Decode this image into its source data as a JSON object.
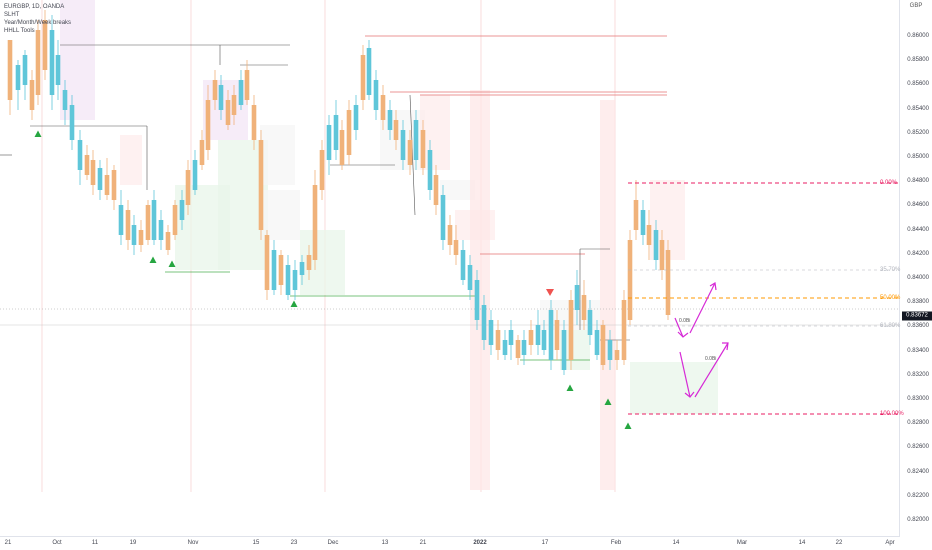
{
  "legend": {
    "symbol": "EURGBP, 1D, OANDA",
    "indicators": [
      "SLHT",
      "Year/Month/Week breaks",
      "HHLL Tools"
    ]
  },
  "price_axis": {
    "currency": "GBP",
    "labels": [
      "0.86000",
      "0.85800",
      "0.85600",
      "0.85400",
      "0.85200",
      "0.85000",
      "0.84800",
      "0.84600",
      "0.84400",
      "0.84200",
      "0.84000",
      "0.83800",
      "0.83600",
      "0.83400",
      "0.83200",
      "0.83000",
      "0.82800",
      "0.82600",
      "0.82400",
      "0.82200",
      "0.82000"
    ],
    "last_price": "0.83672"
  },
  "time_axis": {
    "labels": [
      "21",
      "Oct",
      "11",
      "19",
      "Nov",
      "15",
      "23",
      "Dec",
      "13",
      "21",
      "2022",
      "17",
      "Feb",
      "14",
      "Mar",
      "14",
      "22",
      "Apr"
    ]
  },
  "fib_levels": [
    {
      "label": "0.00%",
      "color": "#e91e63"
    },
    {
      "label": "35.70%",
      "color": "#b2b5be"
    },
    {
      "label": "50.00%",
      "color": "#ff9800"
    },
    {
      "label": "61.80%",
      "color": "#b2b5be"
    },
    {
      "label": "100.00%",
      "color": "#e91e63"
    }
  ],
  "annotations": {
    "fib_a": "0.0Bi",
    "fib_b": "0.0Bi"
  },
  "colors": {
    "bull": "#5fc6d9",
    "bear": "#f0b27a",
    "arrow": "#d62ad6",
    "fib": "#e91e63",
    "fib_mid": "#ff9800",
    "up_marker": "#26a641",
    "down_marker": "#ef5350"
  }
}
